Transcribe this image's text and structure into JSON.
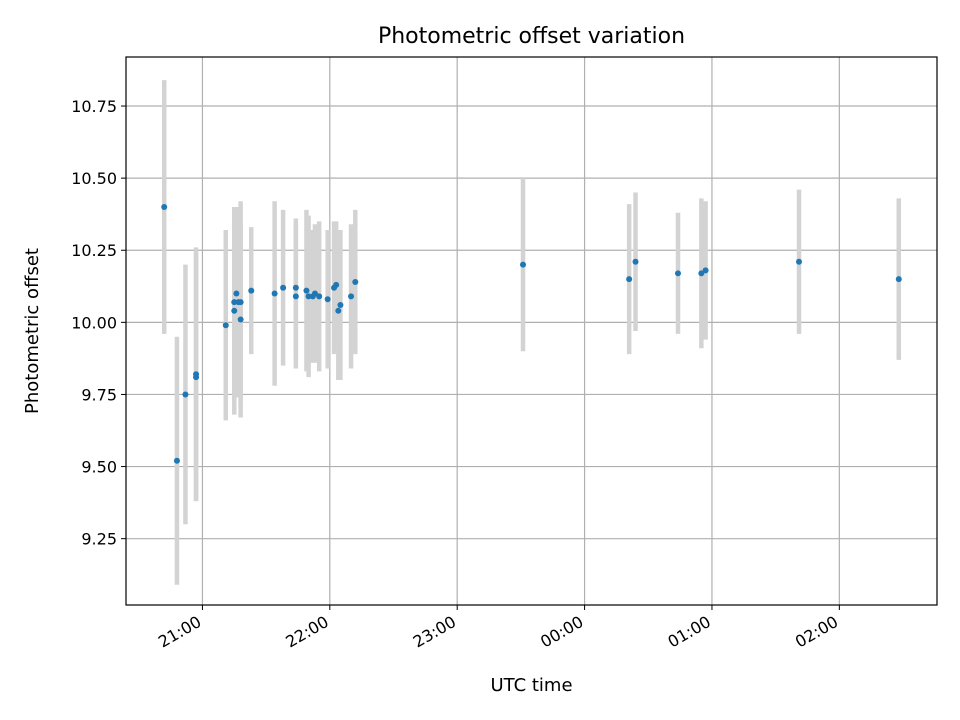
{
  "chart_data": {
    "type": "scatter",
    "title": "Photometric offset variation",
    "xlabel": "UTC time",
    "ylabel": "Photometric offset",
    "x_unit": "UTC",
    "xlim": [
      "20:24",
      "02:46"
    ],
    "ylim": [
      9.02,
      10.92
    ],
    "grid": true,
    "x_tick_labels": [
      "21:00",
      "22:00",
      "23:00",
      "00:00",
      "01:00",
      "02:00"
    ],
    "y_tick_labels": [
      "9.25",
      "9.50",
      "9.75",
      "10.00",
      "10.25",
      "10.50",
      "10.75"
    ],
    "y_ticks": [
      9.25,
      9.5,
      9.75,
      10.0,
      10.25,
      10.5,
      10.75
    ],
    "colors": {
      "points": "#1f77b4",
      "error_bars": "#d3d3d3",
      "grid": "#b0b0b0"
    },
    "points": [
      {
        "x": "20:42",
        "y": 10.4,
        "err": 0.44
      },
      {
        "x": "20:48",
        "y": 9.52,
        "err": 0.43
      },
      {
        "x": "20:52",
        "y": 9.75,
        "err": 0.45
      },
      {
        "x": "20:57",
        "y": 9.82,
        "err": 0.44
      },
      {
        "x": "20:57",
        "y": 9.81,
        "err": 0.43
      },
      {
        "x": "21:11",
        "y": 9.99,
        "err": 0.33
      },
      {
        "x": "21:15",
        "y": 10.04,
        "err": 0.36
      },
      {
        "x": "21:15",
        "y": 10.07,
        "err": 0.33
      },
      {
        "x": "21:16",
        "y": 10.1,
        "err": 0.3
      },
      {
        "x": "21:17",
        "y": 10.07,
        "err": 0.33
      },
      {
        "x": "21:18",
        "y": 10.01,
        "err": 0.34
      },
      {
        "x": "21:18",
        "y": 10.07,
        "err": 0.35
      },
      {
        "x": "21:23",
        "y": 10.11,
        "err": 0.22
      },
      {
        "x": "21:34",
        "y": 10.1,
        "err": 0.32
      },
      {
        "x": "21:38",
        "y": 10.12,
        "err": 0.27
      },
      {
        "x": "21:44",
        "y": 10.12,
        "err": 0.24
      },
      {
        "x": "21:44",
        "y": 10.09,
        "err": 0.25
      },
      {
        "x": "21:49",
        "y": 10.11,
        "err": 0.28
      },
      {
        "x": "21:50",
        "y": 10.09,
        "err": 0.28
      },
      {
        "x": "21:52",
        "y": 10.09,
        "err": 0.23
      },
      {
        "x": "21:53",
        "y": 10.1,
        "err": 0.24
      },
      {
        "x": "21:55",
        "y": 10.09,
        "err": 0.26
      },
      {
        "x": "21:59",
        "y": 10.08,
        "err": 0.24
      },
      {
        "x": "22:02",
        "y": 10.12,
        "err": 0.23
      },
      {
        "x": "22:03",
        "y": 10.13,
        "err": 0.22
      },
      {
        "x": "22:04",
        "y": 10.04,
        "err": 0.24
      },
      {
        "x": "22:05",
        "y": 10.06,
        "err": 0.26
      },
      {
        "x": "22:10",
        "y": 10.09,
        "err": 0.25
      },
      {
        "x": "22:12",
        "y": 10.14,
        "err": 0.25
      },
      {
        "x": "23:31",
        "y": 10.2,
        "err": 0.3
      },
      {
        "x": "00:21",
        "y": 10.15,
        "err": 0.26
      },
      {
        "x": "00:24",
        "y": 10.21,
        "err": 0.24
      },
      {
        "x": "00:44",
        "y": 10.17,
        "err": 0.21
      },
      {
        "x": "00:55",
        "y": 10.17,
        "err": 0.26
      },
      {
        "x": "00:57",
        "y": 10.18,
        "err": 0.24
      },
      {
        "x": "01:41",
        "y": 10.21,
        "err": 0.25
      },
      {
        "x": "02:28",
        "y": 10.15,
        "err": 0.28
      }
    ]
  }
}
